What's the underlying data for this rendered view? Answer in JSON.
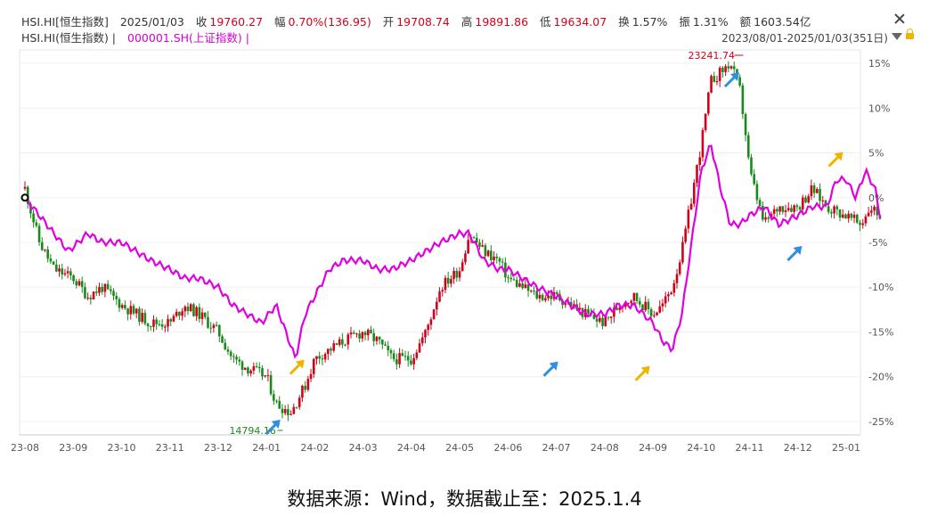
{
  "header": {
    "symbol": "HSI.HI[恒生指数]",
    "date": "2025/01/03",
    "stats": [
      {
        "label": "收",
        "value": "19760.27"
      },
      {
        "label": "幅",
        "value": "0.70%(136.95)"
      },
      {
        "label": "开",
        "value": "19708.74"
      },
      {
        "label": "高",
        "value": "19891.86"
      },
      {
        "label": "低",
        "value": "19634.07"
      },
      {
        "label": "换",
        "value": "1.57%"
      },
      {
        "label": "振",
        "value": "1.31%"
      },
      {
        "label": "额",
        "value": "1603.54亿"
      }
    ],
    "legend_primary": "HSI.HI(恒生指数) |",
    "legend_compare": "000001.SH(上证指数) |",
    "range": "2023/08/01-2025/01/03(351日)"
  },
  "chart_data": {
    "type": "candlestick+line",
    "x_ticks": [
      "23-08",
      "23-09",
      "23-10",
      "23-11",
      "23-12",
      "24-01",
      "24-02",
      "24-03",
      "24-04",
      "24-05",
      "24-06",
      "24-07",
      "24-08",
      "24-09",
      "24-10",
      "24-11",
      "24-12",
      "25-01"
    ],
    "y_ticks": [
      "15%",
      "10%",
      "5%",
      "0%",
      "-5%",
      "-10%",
      "-15%",
      "-20%",
      "-25%"
    ],
    "ylim": [
      -26.5,
      16.5
    ],
    "up_color": "#d0021b",
    "down_color": "#1a8a1a",
    "line_color": "#e000e0",
    "annotations": [
      {
        "text": "23241.74",
        "x": 14.87,
        "y": 15.9
      },
      {
        "text": "14794.16",
        "x": 5.3,
        "y": -26.0
      }
    ],
    "series": [
      {
        "name": "HSI.HI(恒生指数)",
        "style": "candlestick",
        "x": [
          0,
          0.3,
          0.6,
          1,
          1.3,
          1.6,
          2,
          2.3,
          2.6,
          3,
          3.3,
          3.6,
          4,
          4.3,
          4.6,
          5,
          5.2,
          5.5,
          5.8,
          6,
          6.3,
          6.6,
          7,
          7.3,
          7.6,
          8,
          8.3,
          8.6,
          9,
          9.2,
          9.5,
          9.8,
          10,
          10.3,
          10.6,
          11,
          11.3,
          11.6,
          12,
          12.3,
          12.6,
          13,
          13.2,
          13.4,
          13.6,
          13.8,
          14,
          14.2,
          14.4,
          14.6,
          14.8,
          14.9,
          15,
          15.3,
          15.6,
          16,
          16.3,
          16.6,
          17,
          17.3,
          17.5,
          17.7
        ],
        "values": [
          1,
          -5,
          -8,
          -9,
          -11,
          -10,
          -12,
          -13,
          -14,
          -14,
          -12,
          -13,
          -15,
          -18,
          -19,
          -20,
          -23,
          -24,
          -21,
          -18,
          -17,
          -16,
          -15,
          -16,
          -18,
          -18,
          -15,
          -10,
          -8,
          -4,
          -6,
          -7,
          -9,
          -10,
          -11,
          -11,
          -12,
          -13,
          -14,
          -12,
          -11,
          -13,
          -12,
          -10,
          -6,
          0,
          6,
          13,
          14,
          15,
          12,
          8,
          3,
          -3,
          -1,
          -1,
          1,
          -1,
          -2,
          -3,
          -1,
          -2
        ],
        "amplitude": 1.3
      },
      {
        "name": "000001.SH(上证指数)",
        "style": "line",
        "x": [
          0,
          0.3,
          0.6,
          0.9,
          1.1,
          1.3,
          1.6,
          2,
          2.3,
          2.6,
          3,
          3.3,
          3.6,
          4,
          4.3,
          4.6,
          4.9,
          5.2,
          5.4,
          5.6,
          5.8,
          6,
          6.3,
          6.6,
          7,
          7.3,
          7.6,
          8,
          8.3,
          8.6,
          9,
          9.2,
          9.5,
          9.8,
          10,
          10.3,
          10.6,
          11,
          11.3,
          11.6,
          12,
          12.3,
          12.6,
          13,
          13.2,
          13.4,
          13.6,
          13.8,
          14,
          14.2,
          14.4,
          14.6,
          14.8,
          15,
          15.3,
          15.6,
          16,
          16.3,
          16.6,
          16.8,
          17,
          17.2,
          17.4,
          17.6,
          17.7
        ],
        "values": [
          0,
          -2,
          -4,
          -6,
          -5,
          -4,
          -5,
          -5,
          -6,
          -7,
          -8,
          -9,
          -9,
          -10,
          -12,
          -13,
          -14,
          -12,
          -15,
          -18,
          -13,
          -11,
          -8,
          -7,
          -7,
          -8,
          -8,
          -7,
          -6,
          -5,
          -4,
          -4,
          -7,
          -8,
          -8,
          -9,
          -10,
          -11,
          -12,
          -13,
          -13,
          -12,
          -12,
          -14,
          -16,
          -17,
          -13,
          -5,
          3,
          6,
          1,
          -3,
          -3,
          -2,
          -1,
          -3,
          -2,
          -1,
          -1,
          2,
          2,
          0,
          3,
          1,
          -2
        ]
      }
    ]
  },
  "caption": "数据来源：Wind，数据截止至：2025.1.4"
}
